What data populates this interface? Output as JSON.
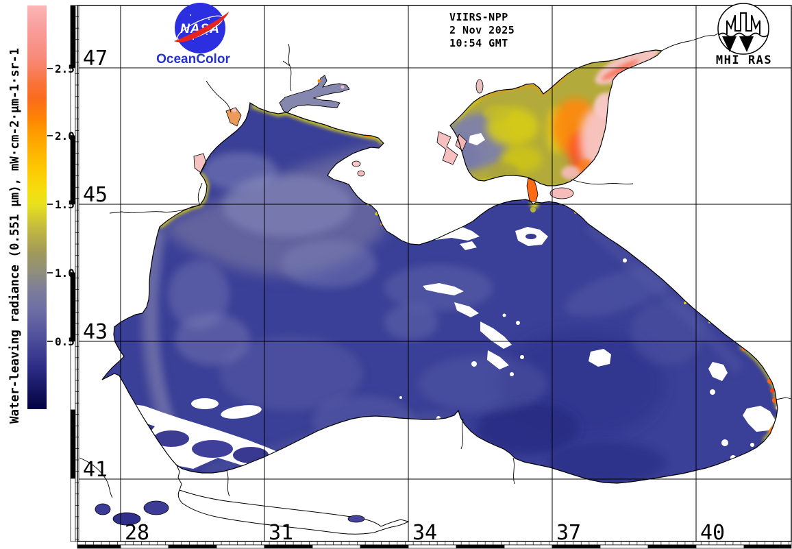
{
  "branding": {
    "nasa_text": "NASA",
    "oceancolor_text": "OceanColor",
    "institute_text": "MHI RAS"
  },
  "acquisition": {
    "sensor": "VIIRS-NPP",
    "date": "2 Nov 2025",
    "time": "10:54 GMT"
  },
  "colorbar": {
    "label": "Water-leaving radiance (0.551 μm), mW·cm-2·μm-1·sr-1",
    "tick_labels": [
      "2.5",
      "2.0",
      "1.5",
      "1.0",
      "0.5"
    ],
    "value_range": [
      0,
      2.95
    ],
    "gradient_top_to_bottom": [
      "#fcb6b6",
      "#f88a78",
      "#f88162",
      "#fb6b1e",
      "#ffa000",
      "#fec600",
      "#e9e11c",
      "#c3bb3e",
      "#8f8e7c",
      "#7070a5",
      "#4b4b9a",
      "#2b2b85",
      "#020240"
    ]
  },
  "map": {
    "region": "Black Sea and Sea of Azov",
    "lat_labels": [
      "47",
      "45",
      "43",
      "41"
    ],
    "lon_labels": [
      "28",
      "31",
      "34",
      "37",
      "40"
    ],
    "colors": {
      "land": "#ffffff",
      "coastline": "#000000",
      "deep_sea": "#3a3f97",
      "shelf_water": "#64649f",
      "azov_base": "#b2ab3c",
      "azov_bloom_orange": "#ff8810",
      "azov_plume_pink": "#f8c4c4",
      "cloud": "#ffffff",
      "grid": "#000000"
    }
  }
}
